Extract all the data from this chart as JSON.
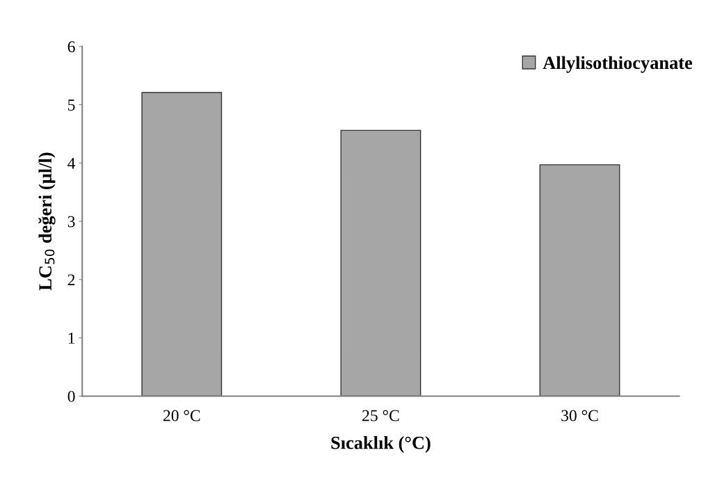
{
  "chart_data": {
    "type": "bar",
    "xlabel": "Sıcaklık (°C)",
    "ylabel": "LC$_{50}$ değeri (µl/l)",
    "categories": [
      "20 °C",
      "25 °C",
      "30 °C"
    ],
    "series": [
      {
        "name": "Allylisothiocyanate",
        "color": "#a6a6a6",
        "values": [
          5.21,
          4.56,
          3.97
        ]
      }
    ],
    "ylim": [
      0,
      6
    ],
    "yticks": [
      0,
      1,
      2,
      3,
      4,
      5,
      6
    ],
    "grid": false,
    "legend": "top right"
  }
}
